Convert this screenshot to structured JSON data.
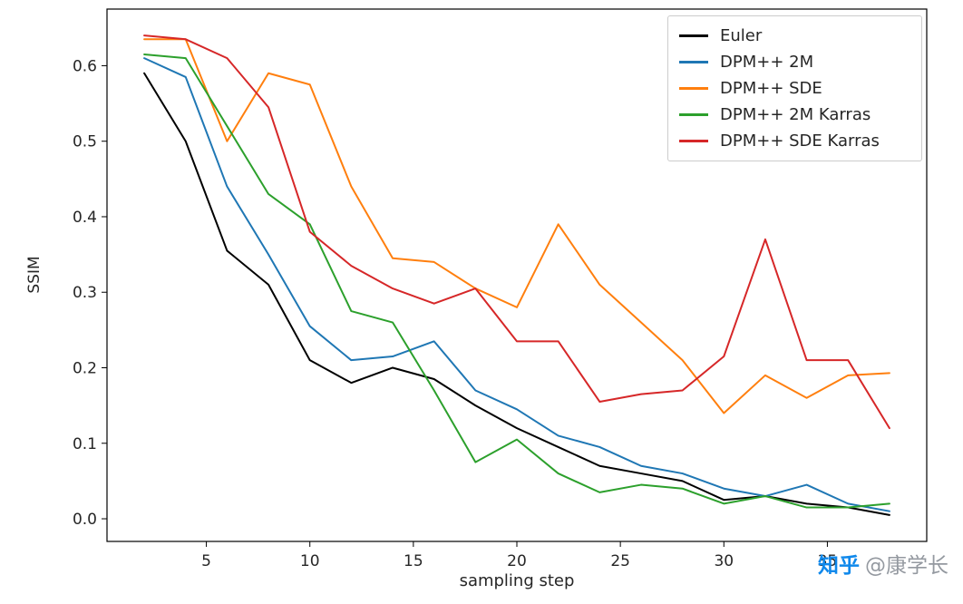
{
  "chart_data": {
    "type": "line",
    "title": "",
    "xlabel": "sampling step",
    "ylabel": "SSIM",
    "x": [
      2,
      4,
      6,
      8,
      10,
      12,
      14,
      16,
      18,
      20,
      22,
      24,
      26,
      28,
      30,
      32,
      34,
      36,
      38
    ],
    "xlim": [
      0.2,
      39.8
    ],
    "ylim": [
      -0.03,
      0.675
    ],
    "xticks": [
      5,
      10,
      15,
      20,
      25,
      30,
      35
    ],
    "yticks": [
      0.0,
      0.1,
      0.2,
      0.3,
      0.4,
      0.5,
      0.6
    ],
    "grid": false,
    "legend_position": "upper right",
    "series": [
      {
        "name": "Euler",
        "color": "#000000",
        "values": [
          0.59,
          0.5,
          0.355,
          0.31,
          0.21,
          0.18,
          0.2,
          0.185,
          0.15,
          0.12,
          0.095,
          0.07,
          0.06,
          0.05,
          0.025,
          0.03,
          0.02,
          0.015,
          0.005
        ]
      },
      {
        "name": "DPM++ 2M",
        "color": "#1f77b4",
        "values": [
          0.61,
          0.585,
          0.44,
          0.35,
          0.255,
          0.21,
          0.215,
          0.235,
          0.17,
          0.145,
          0.11,
          0.095,
          0.07,
          0.06,
          0.04,
          0.03,
          0.045,
          0.02,
          0.01
        ]
      },
      {
        "name": "DPM++ SDE",
        "color": "#ff7f0e",
        "values": [
          0.635,
          0.635,
          0.5,
          0.59,
          0.575,
          0.44,
          0.345,
          0.34,
          0.305,
          0.28,
          0.39,
          0.31,
          0.26,
          0.21,
          0.14,
          0.19,
          0.16,
          0.19,
          0.193
        ]
      },
      {
        "name": "DPM++ 2M Karras",
        "color": "#2ca02c",
        "values": [
          0.615,
          0.61,
          0.52,
          0.43,
          0.39,
          0.275,
          0.26,
          0.17,
          0.075,
          0.105,
          0.06,
          0.035,
          0.045,
          0.04,
          0.02,
          0.03,
          0.015,
          0.015,
          0.02
        ]
      },
      {
        "name": "DPM++ SDE Karras",
        "color": "#d62728",
        "values": [
          0.64,
          0.635,
          0.61,
          0.545,
          0.38,
          0.335,
          0.305,
          0.285,
          0.305,
          0.235,
          0.235,
          0.155,
          0.165,
          0.17,
          0.215,
          0.37,
          0.21,
          0.21,
          0.12
        ]
      }
    ]
  },
  "watermark": {
    "brand": "知乎",
    "handle": "@康学长",
    "brand_color": "#0f88eb",
    "handle_color": "#9499a0"
  }
}
